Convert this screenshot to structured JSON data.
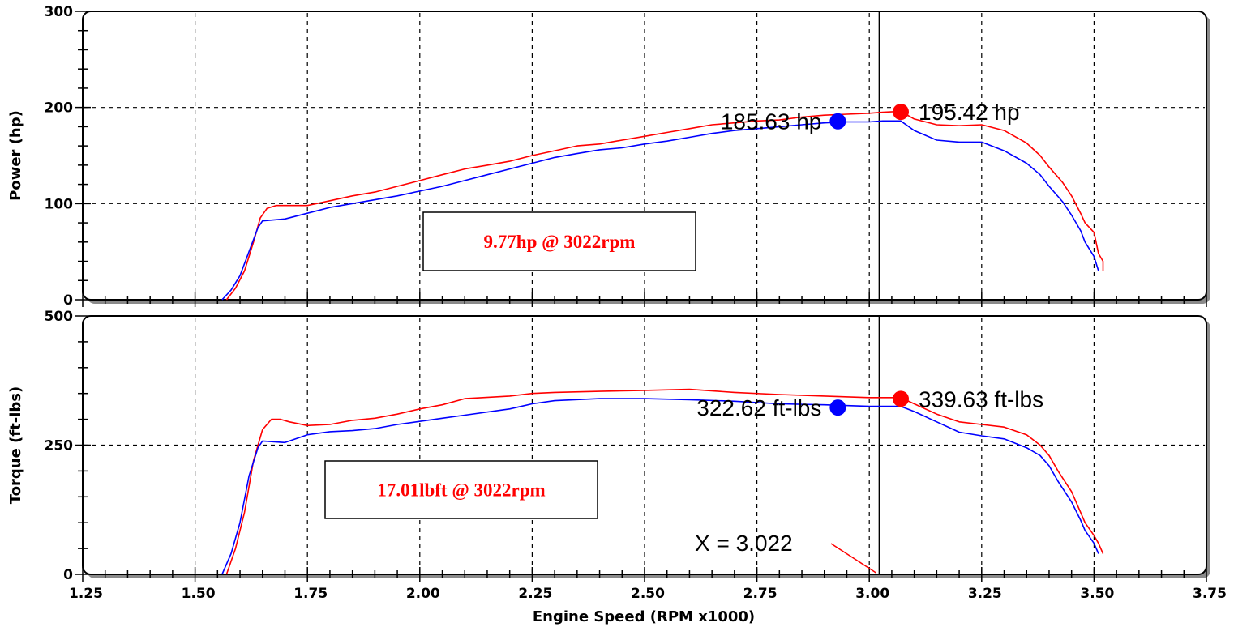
{
  "chart_data": [
    {
      "type": "line",
      "ylabel": "Power (hp)",
      "ylim": [
        0,
        300
      ],
      "yticks": [
        "0",
        "100",
        "200",
        "300"
      ],
      "xlim": [
        1.25,
        3.75
      ],
      "grid": true,
      "cursor_x": 3.022,
      "annotation": "9.77hp @ 3022rpm",
      "series": [
        {
          "color": "#ff0000",
          "x": [
            1.57,
            1.59,
            1.61,
            1.63,
            1.645,
            1.66,
            1.68,
            1.7,
            1.75,
            1.8,
            1.85,
            1.9,
            1.95,
            2.0,
            2.05,
            2.1,
            2.15,
            2.2,
            2.25,
            2.3,
            2.35,
            2.4,
            2.45,
            2.5,
            2.55,
            2.6,
            2.65,
            2.7,
            2.75,
            2.8,
            2.85,
            2.9,
            2.95,
            3.0,
            3.03,
            3.07,
            3.1,
            3.15,
            3.2,
            3.25,
            3.3,
            3.35,
            3.38,
            3.4,
            3.43,
            3.45,
            3.47,
            3.48,
            3.5,
            3.51,
            3.52,
            3.52
          ],
          "values": [
            0,
            12,
            30,
            60,
            85,
            95,
            98,
            98,
            98,
            103,
            108,
            112,
            118,
            124,
            130,
            136,
            140,
            144,
            150,
            155,
            160,
            162,
            166,
            170,
            174,
            178,
            182,
            184,
            186,
            187,
            190,
            192,
            193,
            194,
            195,
            196,
            188,
            182,
            181,
            182,
            176,
            163,
            150,
            138,
            122,
            108,
            90,
            80,
            70,
            48,
            40,
            30
          ]
        },
        {
          "color": "#0000ff",
          "x": [
            1.56,
            1.58,
            1.6,
            1.62,
            1.64,
            1.65,
            1.7,
            1.75,
            1.8,
            1.85,
            1.9,
            1.95,
            2.0,
            2.05,
            2.1,
            2.15,
            2.2,
            2.25,
            2.3,
            2.35,
            2.4,
            2.45,
            2.5,
            2.55,
            2.6,
            2.65,
            2.7,
            2.75,
            2.8,
            2.85,
            2.9,
            2.95,
            3.0,
            3.03,
            3.07,
            3.1,
            3.15,
            3.2,
            3.25,
            3.3,
            3.35,
            3.38,
            3.4,
            3.43,
            3.45,
            3.47,
            3.48,
            3.5,
            3.51
          ],
          "values": [
            0,
            10,
            25,
            50,
            75,
            82,
            84,
            90,
            96,
            100,
            104,
            108,
            113,
            118,
            124,
            130,
            136,
            142,
            148,
            152,
            156,
            158,
            162,
            165,
            169,
            173,
            176,
            178,
            180,
            182,
            184,
            185,
            185,
            186,
            186,
            176,
            166,
            164,
            164,
            155,
            142,
            130,
            118,
            102,
            88,
            72,
            60,
            45,
            30
          ]
        }
      ],
      "markers": [
        {
          "x": 2.93,
          "y": 185.63,
          "color": "#0000ff",
          "label": "185.63 hp"
        },
        {
          "x": 3.07,
          "y": 195.42,
          "color": "#ff0000",
          "label": "195.42 hp"
        }
      ]
    },
    {
      "type": "line",
      "xlabel": "Engine Speed (RPM x1000)",
      "ylabel": "Torque (ft-lbs)",
      "ylim": [
        0,
        500
      ],
      "yticks": [
        "0",
        "250",
        "500"
      ],
      "xlim": [
        1.25,
        3.75
      ],
      "xticks": [
        "1.25",
        "1.50",
        "1.75",
        "2.00",
        "2.25",
        "2.50",
        "2.75",
        "3.00",
        "3.25",
        "3.50",
        "3.75"
      ],
      "grid": true,
      "cursor_x": 3.022,
      "cursor_label": "X = 3.022",
      "annotation": "17.01lbft @ 3022rpm",
      "series": [
        {
          "color": "#ff0000",
          "x": [
            1.57,
            1.59,
            1.61,
            1.63,
            1.65,
            1.67,
            1.69,
            1.71,
            1.75,
            1.8,
            1.85,
            1.9,
            1.95,
            2.0,
            2.05,
            2.1,
            2.2,
            2.25,
            2.3,
            2.4,
            2.5,
            2.6,
            2.7,
            2.8,
            2.9,
            3.0,
            3.05,
            3.07,
            3.1,
            3.15,
            3.2,
            3.25,
            3.3,
            3.35,
            3.38,
            3.4,
            3.42,
            3.45,
            3.47,
            3.48,
            3.5,
            3.51,
            3.52
          ],
          "values": [
            0,
            50,
            120,
            220,
            280,
            300,
            300,
            295,
            288,
            290,
            298,
            302,
            310,
            320,
            328,
            340,
            345,
            350,
            352,
            354,
            356,
            358,
            352,
            348,
            345,
            342,
            342,
            342,
            330,
            310,
            295,
            290,
            285,
            270,
            250,
            230,
            200,
            160,
            120,
            100,
            75,
            60,
            40
          ]
        },
        {
          "color": "#0000ff",
          "x": [
            1.56,
            1.58,
            1.6,
            1.62,
            1.64,
            1.65,
            1.7,
            1.75,
            1.8,
            1.85,
            1.9,
            1.95,
            2.0,
            2.05,
            2.1,
            2.2,
            2.25,
            2.3,
            2.4,
            2.5,
            2.6,
            2.7,
            2.8,
            2.9,
            3.0,
            3.05,
            3.07,
            3.1,
            3.15,
            3.2,
            3.25,
            3.3,
            3.35,
            3.38,
            3.4,
            3.42,
            3.45,
            3.47,
            3.48,
            3.5,
            3.51
          ],
          "values": [
            0,
            40,
            100,
            190,
            245,
            258,
            255,
            270,
            276,
            278,
            282,
            290,
            296,
            302,
            308,
            320,
            330,
            336,
            340,
            340,
            338,
            335,
            330,
            328,
            325,
            325,
            325,
            315,
            295,
            275,
            268,
            262,
            245,
            230,
            210,
            180,
            140,
            105,
            85,
            60,
            40
          ]
        }
      ],
      "markers": [
        {
          "x": 2.93,
          "y": 322.62,
          "color": "#0000ff",
          "label": "322.62 ft-lbs"
        },
        {
          "x": 3.07,
          "y": 339.63,
          "color": "#ff0000",
          "label": "339.63 ft-lbs"
        }
      ]
    }
  ]
}
